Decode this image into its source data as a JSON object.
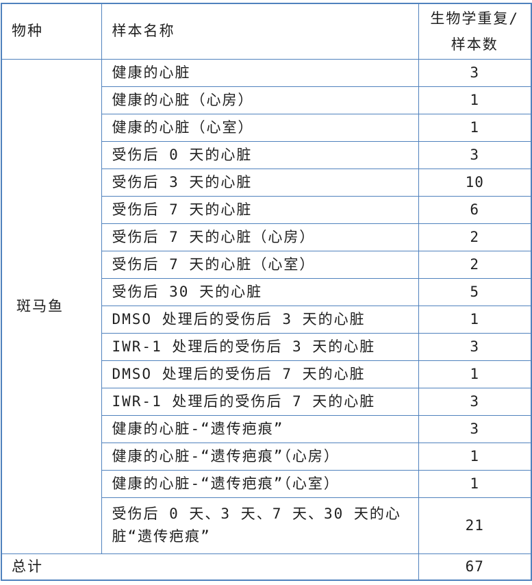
{
  "table": {
    "header": {
      "species": "物种",
      "sample_name": "样本名称",
      "replicates": "生物学重复/\n样本数"
    },
    "species_group": "斑马鱼",
    "rows": [
      {
        "sample": "健康的心脏",
        "count": "3"
      },
      {
        "sample": "健康的心脏（心房）",
        "count": "1"
      },
      {
        "sample": "健康的心脏（心室）",
        "count": "1"
      },
      {
        "sample": "受伤后 0 天的心脏",
        "count": "3"
      },
      {
        "sample": "受伤后 3 天的心脏",
        "count": "10"
      },
      {
        "sample": "受伤后 7 天的心脏",
        "count": "6"
      },
      {
        "sample": "受伤后 7 天的心脏（心房）",
        "count": "2"
      },
      {
        "sample": "受伤后 7 天的心脏（心室）",
        "count": "2"
      },
      {
        "sample": "受伤后 30 天的心脏",
        "count": "5"
      },
      {
        "sample": "DMSO 处理后的受伤后 3 天的心脏",
        "count": "1"
      },
      {
        "sample": "IWR-1 处理后的受伤后 3 天的心脏",
        "count": "3"
      },
      {
        "sample": "DMSO 处理后的受伤后 7 天的心脏",
        "count": "1"
      },
      {
        "sample": "IWR-1 处理后的受伤后 7 天的心脏",
        "count": "3"
      },
      {
        "sample": "健康的心脏-“遗传疤痕”",
        "count": "3"
      },
      {
        "sample": "健康的心脏-“遗传疤痕”（心房）",
        "count": "1"
      },
      {
        "sample": "健康的心脏-“遗传疤痕”（心室）",
        "count": "1"
      },
      {
        "sample": "受伤后 0 天、3 天、7 天、30 天的心脏“遗传疤痕”",
        "count": "21"
      }
    ],
    "total": {
      "label": "总计",
      "count": "67"
    },
    "colors": {
      "border": "#4f81bd",
      "text": "#1f1f1f",
      "background": "#ffffff"
    }
  }
}
